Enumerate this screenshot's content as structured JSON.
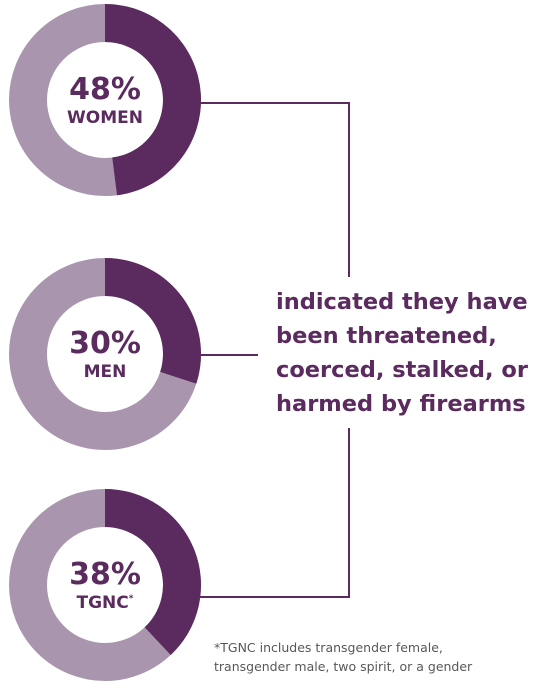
{
  "colors": {
    "dark": "#5b2a5e",
    "light": "#a996ae",
    "connector": "#5b2a5e",
    "text": "#5b2a5e",
    "footnote": "#58585a"
  },
  "chart_data": {
    "type": "pie",
    "variant": "donut",
    "series": [
      {
        "name": "WOMEN",
        "value": 48,
        "label": "48%",
        "group_mark": ""
      },
      {
        "name": "MEN",
        "value": 30,
        "label": "30%",
        "group_mark": ""
      },
      {
        "name": "TGNC",
        "value": 38,
        "label": "38%",
        "group_mark": "*"
      }
    ],
    "statement_lines": [
      "indicated they have",
      "been threatened,",
      "coerced, stalked, or",
      "harmed by firearms"
    ],
    "footnote_lines": [
      "*TGNC includes transgender female,",
      "transgender male, two spirit, or a gender"
    ]
  }
}
